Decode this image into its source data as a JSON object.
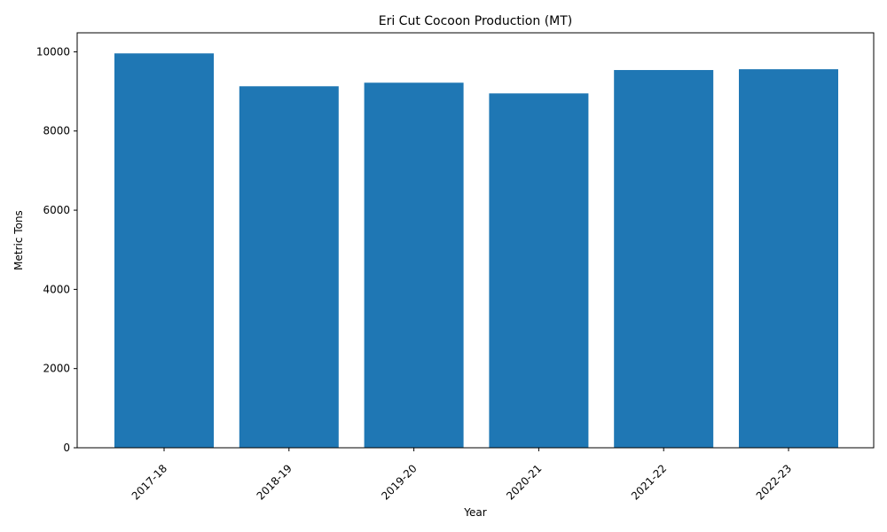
{
  "chart_data": {
    "type": "bar",
    "title": "Eri Cut Cocoon Production (MT)",
    "xlabel": "Year",
    "ylabel": "Metric Tons",
    "categories": [
      "2017-18",
      "2018-19",
      "2019-20",
      "2020-21",
      "2021-22",
      "2022-23"
    ],
    "values": [
      9960,
      9130,
      9220,
      8950,
      9540,
      9560
    ],
    "ylim": [
      0,
      10480
    ],
    "yticks": [
      0,
      2000,
      4000,
      6000,
      8000,
      10000
    ],
    "grid": false,
    "legend": "none",
    "bar_color": "#1f77b4"
  }
}
